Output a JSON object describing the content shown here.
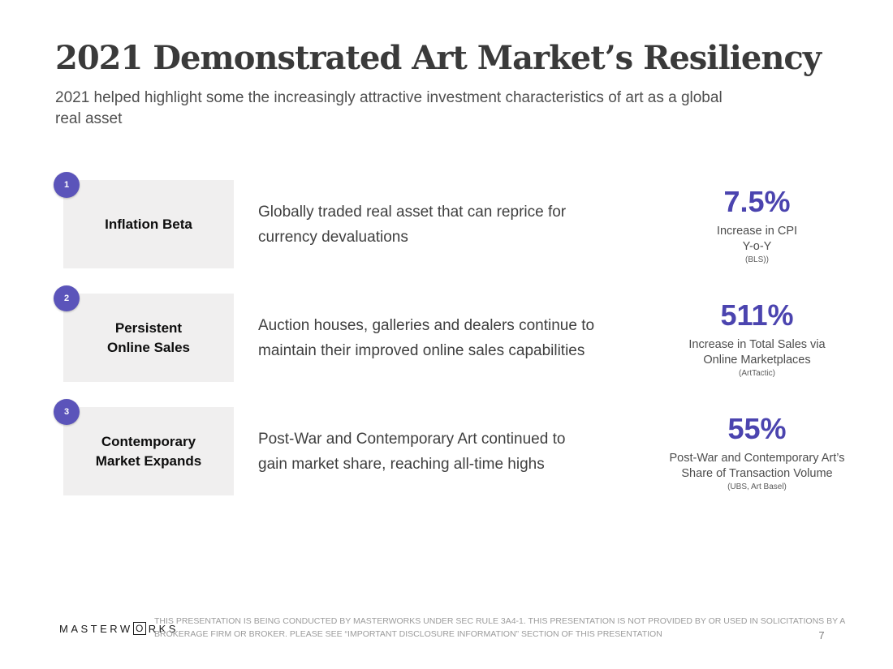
{
  "slide": {
    "title": "2021 Demonstrated Art Market’s Resiliency",
    "subtitle": "2021 helped highlight some the increasingly attractive investment characteristics of art as a global\nreal asset"
  },
  "rows": [
    {
      "number": "1",
      "label": "Inflation Beta",
      "description": "Globally traded real asset that can reprice for\ncurrency devaluations",
      "stat": "7.5%",
      "caption": "Increase in CPI\nY-o-Y",
      "source": "(BLS))"
    },
    {
      "number": "2",
      "label": "Persistent\nOnline Sales",
      "description": "Auction houses, galleries and dealers continue to\nmaintain their improved online sales capabilities",
      "stat": "511%",
      "caption": "Increase in Total Sales via\nOnline Marketplaces",
      "source": "(ArtTactic)"
    },
    {
      "number": "3",
      "label": "Contemporary\nMarket Expands",
      "description": "Post-War and Contemporary Art continued to\ngain market share, reaching all-time highs",
      "stat": "55%",
      "caption": "Post-War and Contemporary Art’s\nShare of Transaction Volume",
      "source": "(UBS, Art Basel)"
    }
  ],
  "footer": {
    "logo_prefix": "MASTERW",
    "logo_boxed_letter": "O",
    "logo_suffix": "RKS",
    "disclaimer": "THIS PRESENTATION  IS BEING CONDUCTED BY MASTERWORKS UNDER SEC RULE 3A4-1. THIS PRESENTATION  IS NOT PROVIDED BY OR USED IN SOLICITATIONS BY A BROKERAGE FIRM OR BROKER. PLEASE SEE “IMPORTANT DISCLOSURE INFORMATION” SECTION OF THIS PRESENTATION",
    "page_number": "7"
  },
  "colors": {
    "accent_purple": "#4b44af",
    "badge_purple": "#5b54ba",
    "box_gray": "#f0efef"
  }
}
